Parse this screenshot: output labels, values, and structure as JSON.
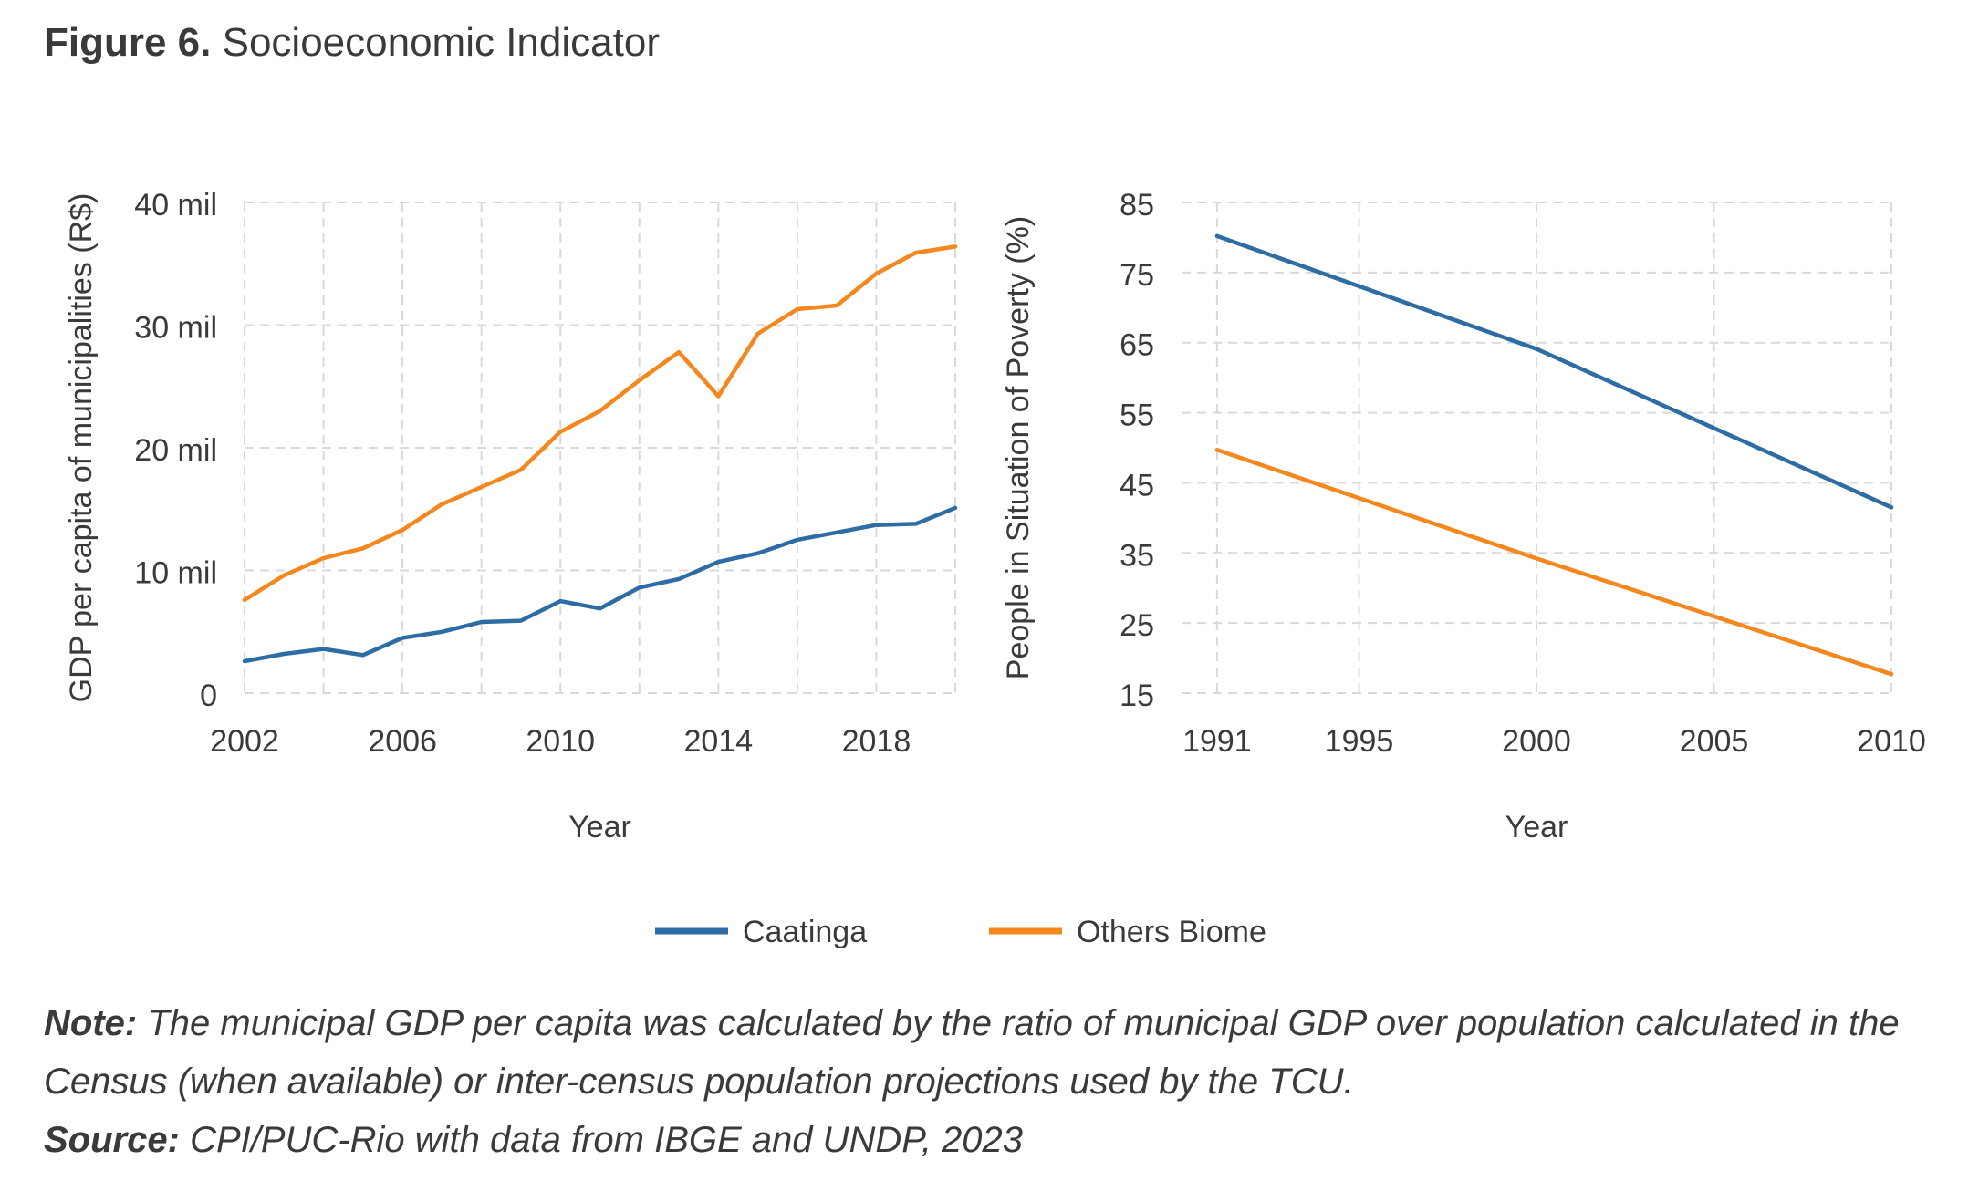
{
  "figure": {
    "label": "Figure 6.",
    "title": "Socioeconomic Indicator"
  },
  "legend": [
    {
      "name": "Caatinga",
      "color": "#2e6da4"
    },
    {
      "name": "Others Biome",
      "color": "#f5871f"
    }
  ],
  "note": {
    "label": "Note:",
    "text": "The municipal GDP per capita was calculated by the ratio of municipal GDP over population calculated in the Census (when available) or inter-census population projections used by the TCU."
  },
  "source": {
    "label": "Source:",
    "text": "CPI/PUC-Rio with data from IBGE and UNDP, 2023"
  },
  "chart_data": [
    {
      "type": "line",
      "xlabel": "Year",
      "ylabel": "GDP per capita of municipalities (R$)",
      "xlim": [
        2002,
        2020
      ],
      "ylim": [
        0,
        40000
      ],
      "xticks": [
        2002,
        2006,
        2010,
        2014,
        2018
      ],
      "yticks": [
        {
          "value": 0,
          "label": "0"
        },
        {
          "value": 10000,
          "label": "10 mil"
        },
        {
          "value": 20000,
          "label": "20 mil"
        },
        {
          "value": 30000,
          "label": "30 mil"
        },
        {
          "value": 40000,
          "label": "40 mil"
        }
      ],
      "grid": true,
      "x": [
        2002,
        2003,
        2004,
        2005,
        2006,
        2007,
        2008,
        2009,
        2010,
        2011,
        2012,
        2013,
        2014,
        2015,
        2016,
        2017,
        2018,
        2019,
        2020
      ],
      "series": [
        {
          "name": "Caatinga",
          "color": "#2e6da4",
          "values": [
            2600,
            3200,
            3600,
            3100,
            4500,
            5000,
            5800,
            5900,
            7500,
            6900,
            8600,
            9300,
            10700,
            11400,
            12500,
            13100,
            13700,
            13800,
            15100
          ]
        },
        {
          "name": "Others Biome",
          "color": "#f5871f",
          "values": [
            7600,
            9600,
            11000,
            11800,
            13300,
            15400,
            16800,
            18200,
            21300,
            23000,
            25500,
            27800,
            24200,
            29300,
            31300,
            31600,
            34200,
            35900,
            36400
          ]
        }
      ]
    },
    {
      "type": "line",
      "xlabel": "Year",
      "ylabel": "People in Situation of Poverty (%)",
      "xlim": [
        1990,
        2010
      ],
      "ylim": [
        15,
        85
      ],
      "xticks": [
        1991,
        1995,
        2000,
        2005,
        2010
      ],
      "yticks": [
        15,
        25,
        35,
        45,
        55,
        65,
        75,
        85
      ],
      "grid": true,
      "x": [
        1991,
        2000,
        2010
      ],
      "series": [
        {
          "name": "Caatinga",
          "color": "#2e6da4",
          "values": [
            80.2,
            64.1,
            41.5
          ]
        },
        {
          "name": "Others Biome",
          "color": "#f5871f",
          "values": [
            49.7,
            34.2,
            17.7
          ]
        }
      ]
    }
  ]
}
